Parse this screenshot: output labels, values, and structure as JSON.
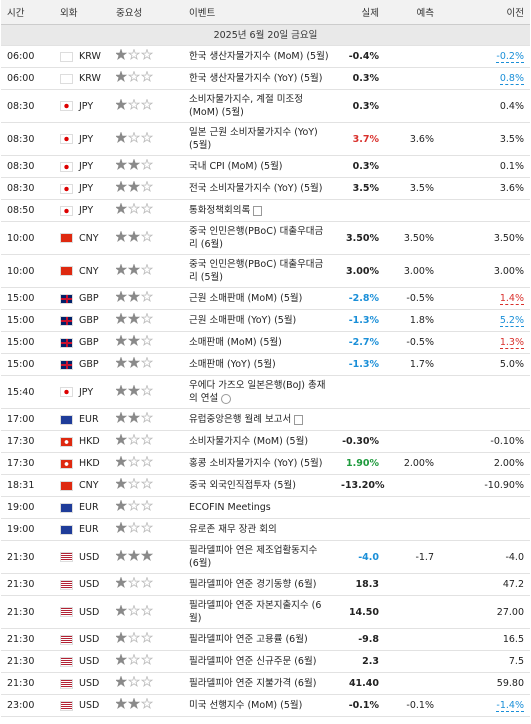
{
  "table": {
    "header": [
      "시간",
      "외화",
      "중요성",
      "이벤트",
      "실제",
      "예측",
      "이전"
    ],
    "date": "2025년 6월 20일 금요일",
    "rows": [
      {
        "time": "06:00",
        "currency": "KRW",
        "importance": 1,
        "event": "한국 생산자물가지수 (MoM) (5월)",
        "actual": "-0.4%",
        "forecast": null,
        "previous": "-0.2%",
        "previous_color": "blue"
      },
      {
        "time": "06:00",
        "currency": "KRW",
        "importance": 1,
        "event": "한국 생산자물가지수 (YoY) (5월)",
        "actual": "0.3%",
        "forecast": null,
        "previous": "0.8%",
        "previous_color": "blue"
      },
      {
        "time": "08:30",
        "currency": "JPY",
        "importance": 1,
        "event": "소비자물가지수, 계절 미조정 (MoM) (5월)",
        "actual": "0.3%",
        "forecast": null,
        "previous": "0.4%"
      },
      {
        "time": "08:30",
        "currency": "JPY",
        "importance": 1,
        "event": "일본 근원 소비자물가지수 (YoY) (5월)",
        "actual": "3.7%",
        "actual_color": "red",
        "forecast": "3.6%",
        "previous": "3.5%"
      },
      {
        "time": "08:30",
        "currency": "JPY",
        "importance": 2,
        "event": "국내 CPI (MoM) (5월)",
        "actual": "0.3%",
        "forecast": null,
        "previous": "0.1%"
      },
      {
        "time": "08:30",
        "currency": "JPY",
        "importance": 2,
        "event": "전국 소비자물가지수 (YoY) (5월)",
        "actual": "3.5%",
        "forecast": "3.5%",
        "previous": "3.6%"
      },
      {
        "time": "08:50",
        "currency": "JPY",
        "importance": 1,
        "event": "통화정책회의록",
        "icon": "doc",
        "actual": null,
        "forecast": null,
        "previous": null
      },
      {
        "time": "10:00",
        "currency": "CNY",
        "importance": 2,
        "event": "중국 인민은행(PBoC) 대출우대금리 (6월)",
        "actual": "3.50%",
        "forecast": "3.50%",
        "previous": "3.50%"
      },
      {
        "time": "10:00",
        "currency": "CNY",
        "importance": 2,
        "event": "중국 인민은행(PBoC) 대출우대금리 (5월)",
        "actual": "3.00%",
        "forecast": "3.00%",
        "previous": "3.00%"
      },
      {
        "time": "15:00",
        "currency": "GBP",
        "importance": 2,
        "event": "근원 소매판매 (MoM) (5월)",
        "actual": "-2.8%",
        "actual_color": "blue",
        "forecast": "-0.5%",
        "previous": "1.4%",
        "previous_color": "red"
      },
      {
        "time": "15:00",
        "currency": "GBP",
        "importance": 2,
        "event": "근원 소매판매 (YoY) (5월)",
        "actual": "-1.3%",
        "actual_color": "blue",
        "forecast": "1.8%",
        "previous": "5.2%",
        "previous_color": "blue"
      },
      {
        "time": "15:00",
        "currency": "GBP",
        "importance": 2,
        "event": "소매판매 (MoM) (5월)",
        "actual": "-2.7%",
        "actual_color": "blue",
        "forecast": "-0.5%",
        "previous": "1.3%",
        "previous_color": "red"
      },
      {
        "time": "15:00",
        "currency": "GBP",
        "importance": 2,
        "event": "소매판매 (YoY) (5월)",
        "actual": "-1.3%",
        "actual_color": "blue",
        "forecast": "1.7%",
        "previous": "5.0%"
      },
      {
        "time": "15:40",
        "currency": "JPY",
        "importance": 2,
        "event": "우에다 가즈오 일본은행(BoJ) 총재의 연설",
        "icon": "speech",
        "actual": null,
        "forecast": null,
        "previous": null
      },
      {
        "time": "17:00",
        "currency": "EUR",
        "importance": 2,
        "event": "유럽중앙은행 월례 보고서",
        "icon": "doc",
        "actual": null,
        "forecast": null,
        "previous": null
      },
      {
        "time": "17:30",
        "currency": "HKD",
        "importance": 1,
        "event": "소비자물가지수 (MoM) (5월)",
        "actual": "-0.30%",
        "forecast": null,
        "previous": "-0.10%"
      },
      {
        "time": "17:30",
        "currency": "HKD",
        "importance": 1,
        "event": "홍콩 소비자물가지수 (YoY) (5월)",
        "actual": "1.90%",
        "actual_color": "green",
        "forecast": "2.00%",
        "previous": "2.00%"
      },
      {
        "time": "18:31",
        "currency": "CNY",
        "importance": 1,
        "event": "중국 외국인직접투자 (5월)",
        "actual": "-13.20%",
        "forecast": null,
        "previous": "-10.90%"
      },
      {
        "time": "19:00",
        "currency": "EUR",
        "importance": 1,
        "event": "ECOFIN Meetings",
        "actual": null,
        "forecast": null,
        "previous": null
      },
      {
        "time": "19:00",
        "currency": "EUR",
        "importance": 1,
        "event": "유로존 재무 장관 회의",
        "actual": null,
        "forecast": null,
        "previous": null
      },
      {
        "time": "21:30",
        "currency": "USD",
        "importance": 3,
        "event": "필라델피아 연은 제조업활동지수 (6월)",
        "actual": "-4.0",
        "actual_color": "blue",
        "forecast": "-1.7",
        "previous": "-4.0"
      },
      {
        "time": "21:30",
        "currency": "USD",
        "importance": 1,
        "event": "필라델피아 연준 경기동향 (6월)",
        "actual": "18.3",
        "forecast": null,
        "previous": "47.2"
      },
      {
        "time": "21:30",
        "currency": "USD",
        "importance": 1,
        "event": "필라델피아 연준 자본지출지수 (6월)",
        "actual": "14.50",
        "forecast": null,
        "previous": "27.00"
      },
      {
        "time": "21:30",
        "currency": "USD",
        "importance": 1,
        "event": "필라델피아 연준 고용률 (6월)",
        "actual": "-9.8",
        "forecast": null,
        "previous": "16.5"
      },
      {
        "time": "21:30",
        "currency": "USD",
        "importance": 1,
        "event": "필라델피아 연준 신규주문 (6월)",
        "actual": "2.3",
        "forecast": null,
        "previous": "7.5"
      },
      {
        "time": "21:30",
        "currency": "USD",
        "importance": 1,
        "event": "필라델피아 연준 지불가격 (6월)",
        "actual": "41.40",
        "forecast": null,
        "previous": "59.80"
      },
      {
        "time": "23:00",
        "currency": "USD",
        "importance": 2,
        "event": "미국 선행지수 (MoM) (5월)",
        "actual": "-0.1%",
        "forecast": "-0.1%",
        "previous": "-1.4%",
        "previous_color": "blue"
      }
    ]
  }
}
